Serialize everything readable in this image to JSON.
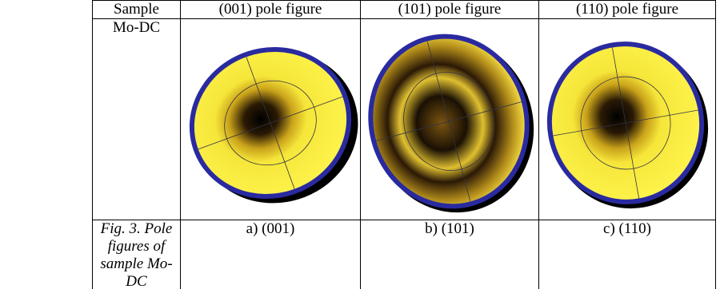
{
  "table": {
    "header": [
      "Sample",
      "(001) pole figure",
      "(101) pole figure",
      "(110) pole figure"
    ],
    "rows": [
      [
        "Mo-DC"
      ],
      [
        "Fig. 3. Pole figures of sample Mo-DC",
        "a) (001)",
        "b) (101)",
        "c) (110)"
      ]
    ]
  }
}
